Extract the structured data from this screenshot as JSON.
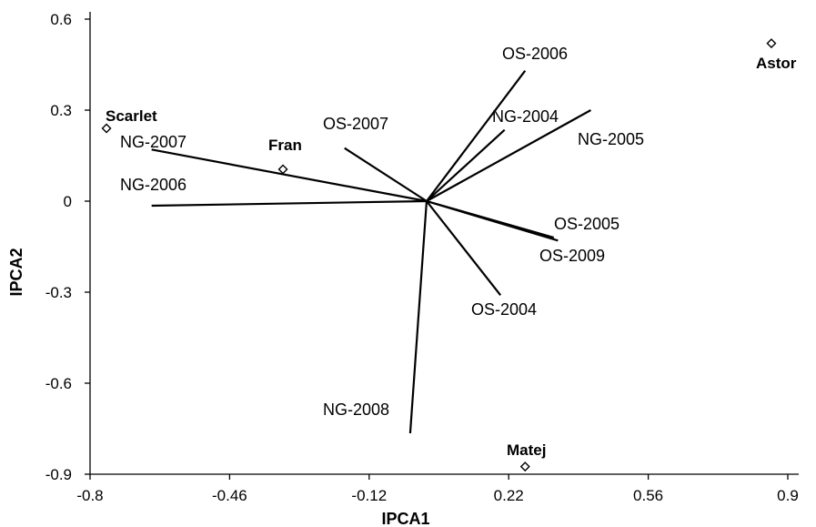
{
  "chart_data": {
    "type": "scatter",
    "title": "",
    "xlabel": "IPCA1",
    "ylabel": "IPCA2",
    "xlim": [
      -0.8,
      0.9
    ],
    "ylim": [
      -0.9,
      0.6
    ],
    "x_ticks": [
      -0.8,
      -0.46,
      -0.12,
      0.22,
      0.56,
      0.9
    ],
    "x_tick_labels": [
      "-0.8",
      "-0.46",
      "-0.12",
      "0.22",
      "0.56",
      "0.9"
    ],
    "y_ticks": [
      0.6,
      0.3,
      0,
      -0.3,
      -0.6,
      -0.9
    ],
    "y_tick_labels": [
      "0.6",
      "0.3",
      "0",
      "-0.3",
      "-0.6",
      "-0.9"
    ],
    "grid": false,
    "origin": [
      0.02,
      0.0
    ],
    "genotypes": [
      {
        "name": "Scarlet",
        "x": -0.76,
        "y": 0.24
      },
      {
        "name": "Fran",
        "x": -0.33,
        "y": 0.105
      },
      {
        "name": "Astor",
        "x": 0.86,
        "y": 0.52
      },
      {
        "name": "Matej",
        "x": 0.26,
        "y": -0.875
      }
    ],
    "environments": [
      {
        "name": "OS-2006",
        "x": 0.26,
        "y": 0.43
      },
      {
        "name": "NG-2004",
        "x": 0.21,
        "y": 0.235
      },
      {
        "name": "NG-2005",
        "x": 0.42,
        "y": 0.3
      },
      {
        "name": "OS-2007",
        "x": -0.18,
        "y": 0.175
      },
      {
        "name": "NG-2007",
        "x": -0.65,
        "y": 0.17
      },
      {
        "name": "NG-2006",
        "x": -0.65,
        "y": -0.015
      },
      {
        "name": "OS-2005",
        "x": 0.33,
        "y": -0.12
      },
      {
        "name": "OS-2009",
        "x": 0.34,
        "y": -0.13
      },
      {
        "name": "OS-2004",
        "x": 0.2,
        "y": -0.31
      },
      {
        "name": "NG-2008",
        "x": -0.02,
        "y": -0.765
      }
    ]
  }
}
